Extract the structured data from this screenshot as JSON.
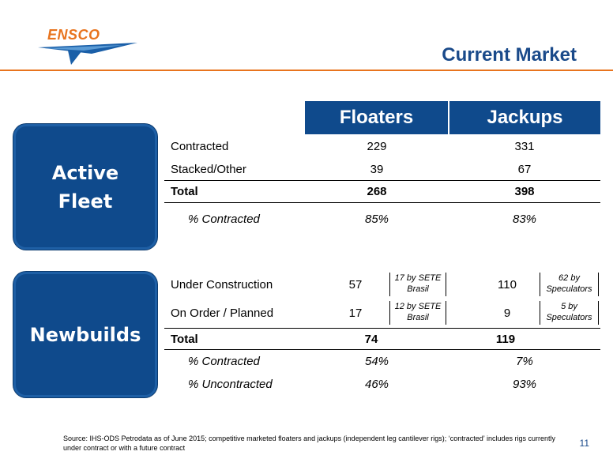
{
  "header": {
    "logo_text": "ENSCO",
    "title": "Current Market"
  },
  "columns": {
    "floaters": "Floaters",
    "jackups": "Jackups"
  },
  "active_fleet": {
    "box_line1": "Active",
    "box_line2": "Fleet",
    "rows": [
      {
        "label": "Contracted",
        "floaters": "229",
        "jackups": "331"
      },
      {
        "label": "Stacked/Other",
        "floaters": "39",
        "jackups": "67"
      },
      {
        "label": "Total",
        "floaters": "268",
        "jackups": "398"
      },
      {
        "label": "% Contracted",
        "floaters": "85%",
        "jackups": "83%"
      }
    ]
  },
  "newbuilds": {
    "box_label": "Newbuilds",
    "rows": [
      {
        "label": "Under Construction",
        "floaters": "57",
        "floaters_note_1": "17 by SETE",
        "floaters_note_2": "Brasil",
        "jackups": "110",
        "jackups_note_1": "62 by",
        "jackups_note_2": "Speculators"
      },
      {
        "label": "On Order / Planned",
        "floaters": "17",
        "floaters_note_1": "12 by SETE",
        "floaters_note_2": "Brasil",
        "jackups": "9",
        "jackups_note_1": "5 by",
        "jackups_note_2": "Speculators"
      },
      {
        "label": "Total",
        "floaters": "74",
        "jackups": "119"
      },
      {
        "label": "% Contracted",
        "floaters": "54%",
        "jackups": "7%"
      },
      {
        "label": "% Uncontracted",
        "floaters": "46%",
        "jackups": "93%"
      }
    ]
  },
  "footer": {
    "source": "Source: IHS-ODS Petrodata as of June 2015; competitive marketed floaters and jackups (independent leg cantilever rigs); ‘contracted’ includes rigs currently under contract or with a future contract",
    "page_number": "11"
  },
  "colors": {
    "brand_blue": "#0f4a8c",
    "brand_orange": "#e8741e"
  }
}
